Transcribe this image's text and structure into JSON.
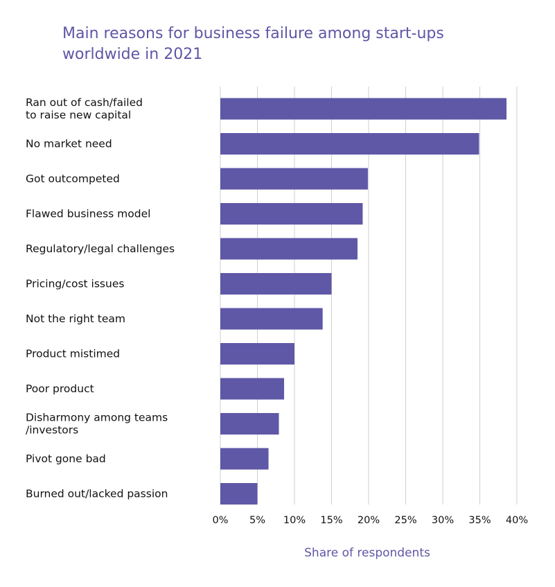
{
  "chart_data": {
    "type": "bar",
    "orientation": "horizontal",
    "title_lines": [
      "Main reasons for business failure among start-ups",
      "worldwide in 2021"
    ],
    "xlabel": "Share of respondents",
    "ylabel": "",
    "xlim": [
      0,
      40
    ],
    "ticks": [
      0,
      5,
      10,
      15,
      20,
      25,
      30,
      35,
      40
    ],
    "tick_labels": [
      "0%",
      "5%",
      "10%",
      "15%",
      "20%",
      "25%",
      "30%",
      "35%",
      "40%"
    ],
    "grid": true,
    "categories": [
      [
        "Ran out of cash/failed",
        "to raise new capital"
      ],
      [
        "No market need"
      ],
      [
        "Got outcompeted"
      ],
      [
        "Flawed business model"
      ],
      [
        "Regulatory/legal challenges"
      ],
      [
        "Pricing/cost issues"
      ],
      [
        "Not the right team"
      ],
      [
        "Product mistimed"
      ],
      [
        "Poor product"
      ],
      [
        "Disharmony among teams",
        "/investors"
      ],
      [
        "Pivot gone bad"
      ],
      [
        "Burned out/lacked passion"
      ]
    ],
    "values": [
      38.6,
      34.9,
      19.9,
      19.2,
      18.5,
      15.0,
      13.8,
      10.0,
      8.6,
      7.9,
      6.5,
      5.0
    ],
    "colors": {
      "bar": "#5f58a7",
      "title": "#5e56a6",
      "grid": "#cfcfcf"
    }
  }
}
